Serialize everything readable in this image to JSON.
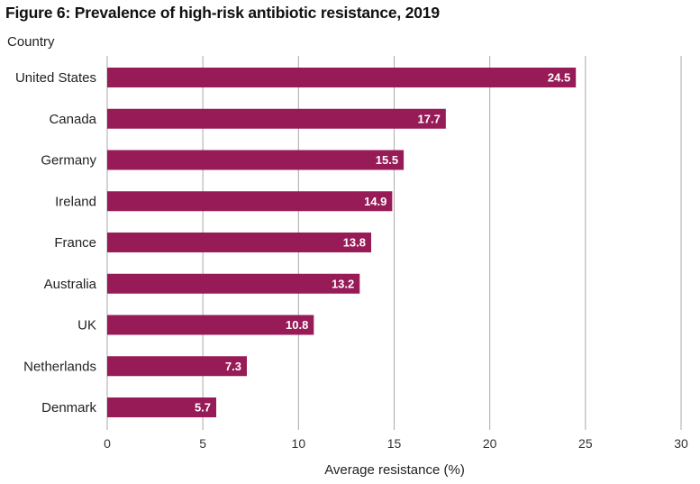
{
  "chart_data": {
    "type": "bar",
    "orientation": "horizontal",
    "title": "Figure 6: Prevalence of high-risk antibiotic resistance, 2019",
    "ylabel": "Country",
    "xlabel": "Average resistance (%)",
    "categories": [
      "United States",
      "Canada",
      "Germany",
      "Ireland",
      "France",
      "Australia",
      "UK",
      "Netherlands",
      "Denmark"
    ],
    "values": [
      24.5,
      17.7,
      15.5,
      14.9,
      13.8,
      13.2,
      10.8,
      7.3,
      5.7
    ],
    "data_labels": [
      "24.5",
      "17.7",
      "15.5",
      "14.9",
      "13.8",
      "13.2",
      "10.8",
      "7.3",
      "5.7"
    ],
    "xlim": [
      0,
      30
    ],
    "xticks": [
      0,
      5,
      10,
      15,
      20,
      25,
      30
    ],
    "grid": true,
    "bar_color": "#971b57",
    "grid_color": "#aaaaaa"
  }
}
